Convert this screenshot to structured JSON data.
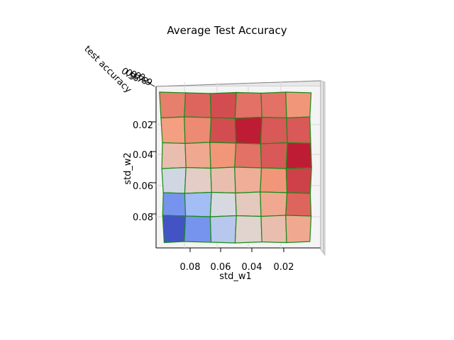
{
  "chart_data": {
    "type": "heatmap",
    "title": "Average Test Accuracy",
    "xlabel": "std_w1",
    "ylabel": "std_w2",
    "zlabel": "test accuracy",
    "x_ticks": [
      "0.08",
      "0.06",
      "0.04",
      "0.02"
    ],
    "y_ticks": [
      "0.02",
      "0.04",
      "0.06",
      "0.08"
    ],
    "colormap": "coolwarm",
    "edge_color": "#1a8a1a",
    "grid": true,
    "rows": [
      [
        0.8,
        0.84,
        0.88,
        0.82,
        0.82,
        0.76
      ],
      [
        0.74,
        0.78,
        0.88,
        0.96,
        0.86,
        0.86
      ],
      [
        0.62,
        0.7,
        0.76,
        0.82,
        0.86,
        0.96
      ],
      [
        0.46,
        0.56,
        0.62,
        0.68,
        0.76,
        0.9
      ],
      [
        0.18,
        0.32,
        0.48,
        0.58,
        0.7,
        0.84
      ],
      [
        0.02,
        0.18,
        0.38,
        0.54,
        0.62,
        0.7
      ]
    ]
  }
}
